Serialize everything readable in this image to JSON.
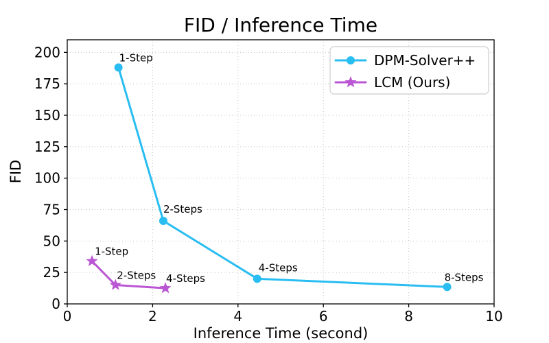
{
  "chart_data": {
    "type": "line",
    "title": "FID / Inference Time",
    "xlabel": "Inference Time (second)",
    "ylabel": "FID",
    "xlim": [
      0,
      10
    ],
    "ylim": [
      0,
      210
    ],
    "xticks": [
      0,
      2,
      4,
      6,
      8,
      10
    ],
    "yticks": [
      0,
      25,
      50,
      75,
      100,
      125,
      150,
      175,
      200
    ],
    "grid": true,
    "grid_style": "dotted",
    "legend_position": "upper right",
    "series": [
      {
        "name": "DPM-Solver++",
        "color": "#29BDF1",
        "marker": "circle",
        "points": [
          {
            "x": 1.2,
            "y": 188,
            "label": "1-Step",
            "dx": 1,
            "dy": -9
          },
          {
            "x": 2.25,
            "y": 66,
            "label": "2-Steps",
            "dx": 0,
            "dy": -12
          },
          {
            "x": 4.45,
            "y": 20,
            "label": "4-Steps",
            "dx": 2,
            "dy": -11
          },
          {
            "x": 8.9,
            "y": 13.5,
            "label": "8-Steps",
            "dx": -4,
            "dy": -9
          }
        ]
      },
      {
        "name": "LCM (Ours)",
        "color": "#BA55D3",
        "marker": "star",
        "points": [
          {
            "x": 0.58,
            "y": 34,
            "label": "1-Step",
            "dx": 4,
            "dy": -9
          },
          {
            "x": 1.13,
            "y": 15,
            "label": "2-Steps",
            "dx": 2,
            "dy": -9
          },
          {
            "x": 2.3,
            "y": 12.5,
            "label": "4-Steps",
            "dx": 1,
            "dy": -9
          }
        ]
      }
    ]
  }
}
